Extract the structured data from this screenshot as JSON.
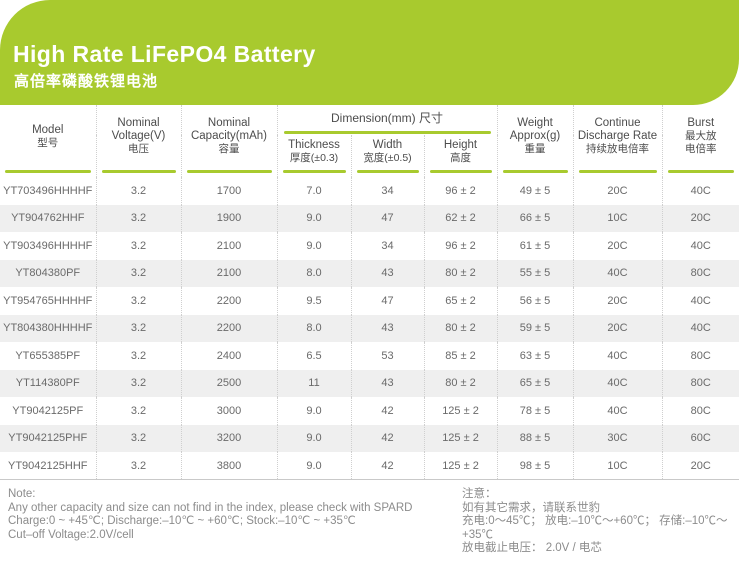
{
  "colors": {
    "brand_green": "#a8ca2e",
    "row_alt": "#efefef",
    "text_gray": "#6a6a6a"
  },
  "banner": {
    "title": "High Rate LiFePO4 Battery",
    "subtitle": "高倍率磷酸铁锂电池"
  },
  "table": {
    "headers": {
      "model": [
        "Model",
        "型号"
      ],
      "voltage": [
        "Nominal",
        "Voltage(V)",
        "电压"
      ],
      "capacity": [
        "Nominal",
        "Capacity(mAh)",
        "容量"
      ],
      "dimension": "Dimension(mm) 尺寸",
      "thickness": [
        "Thickness",
        "厚度(±0.3)"
      ],
      "width": [
        "Width",
        "宽度(±0.5)"
      ],
      "height": [
        "Height",
        "高度"
      ],
      "weight": [
        "Weight",
        "Approx(g)",
        "重量"
      ],
      "discharge": [
        "Continue",
        "Discharge Rate",
        "持续放电倍率"
      ],
      "burst": [
        "Burst",
        "最大放",
        "电倍率"
      ]
    },
    "columns": [
      "model",
      "voltage",
      "capacity",
      "thickness",
      "width",
      "height",
      "weight",
      "discharge",
      "burst"
    ],
    "rows": [
      {
        "model": "YT703496HHHHF",
        "voltage": "3.2",
        "capacity": "1700",
        "thickness": "7.0",
        "width": "34",
        "height": "96 ± 2",
        "weight": "49 ± 5",
        "discharge": "20C",
        "burst": "40C"
      },
      {
        "model": "YT904762HHF",
        "voltage": "3.2",
        "capacity": "1900",
        "thickness": "9.0",
        "width": "47",
        "height": "62 ± 2",
        "weight": "66 ± 5",
        "discharge": "10C",
        "burst": "20C"
      },
      {
        "model": "YT903496HHHHF",
        "voltage": "3.2",
        "capacity": "2100",
        "thickness": "9.0",
        "width": "34",
        "height": "96 ± 2",
        "weight": "61 ± 5",
        "discharge": "20C",
        "burst": "40C"
      },
      {
        "model": "YT804380PF",
        "voltage": "3.2",
        "capacity": "2100",
        "thickness": "8.0",
        "width": "43",
        "height": "80 ± 2",
        "weight": "55 ± 5",
        "discharge": "40C",
        "burst": "80C"
      },
      {
        "model": "YT954765HHHHF",
        "voltage": "3.2",
        "capacity": "2200",
        "thickness": "9.5",
        "width": "47",
        "height": "65 ± 2",
        "weight": "56 ± 5",
        "discharge": "20C",
        "burst": "40C"
      },
      {
        "model": "YT804380HHHHF",
        "voltage": "3.2",
        "capacity": "2200",
        "thickness": "8.0",
        "width": "43",
        "height": "80 ± 2",
        "weight": "59 ± 5",
        "discharge": "20C",
        "burst": "40C"
      },
      {
        "model": "YT655385PF",
        "voltage": "3.2",
        "capacity": "2400",
        "thickness": "6.5",
        "width": "53",
        "height": "85 ± 2",
        "weight": "63 ± 5",
        "discharge": "40C",
        "burst": "80C"
      },
      {
        "model": "YT114380PF",
        "voltage": "3.2",
        "capacity": "2500",
        "thickness": "11",
        "width": "43",
        "height": "80 ± 2",
        "weight": "65 ± 5",
        "discharge": "40C",
        "burst": "80C"
      },
      {
        "model": "YT9042125PF",
        "voltage": "3.2",
        "capacity": "3000",
        "thickness": "9.0",
        "width": "42",
        "height": "125 ± 2",
        "weight": "78 ± 5",
        "discharge": "40C",
        "burst": "80C"
      },
      {
        "model": "YT9042125PHF",
        "voltage": "3.2",
        "capacity": "3200",
        "thickness": "9.0",
        "width": "42",
        "height": "125 ± 2",
        "weight": "88 ± 5",
        "discharge": "30C",
        "burst": "60C"
      },
      {
        "model": "YT9042125HHF",
        "voltage": "3.2",
        "capacity": "3800",
        "thickness": "9.0",
        "width": "42",
        "height": "125 ± 2",
        "weight": "98 ± 5",
        "discharge": "10C",
        "burst": "20C"
      }
    ]
  },
  "notes": {
    "en": {
      "heading": "Note:",
      "lines": [
        "Any other capacity and size can not find in the index, please check with SPARD",
        "Charge:0 ~ +45℃; Discharge:–10℃ ~ +60℃; Stock:–10℃ ~ +35℃",
        "Cut–off Voltage:2.0V/cell"
      ]
    },
    "zh": {
      "heading": "注意：",
      "lines": [
        "如有其它需求，请联系世豹",
        "充电:0～45℃； 放电:–10℃～+60℃； 存储:–10℃～+35℃",
        "放电截止电压： 2.0V / 电芯"
      ]
    }
  }
}
